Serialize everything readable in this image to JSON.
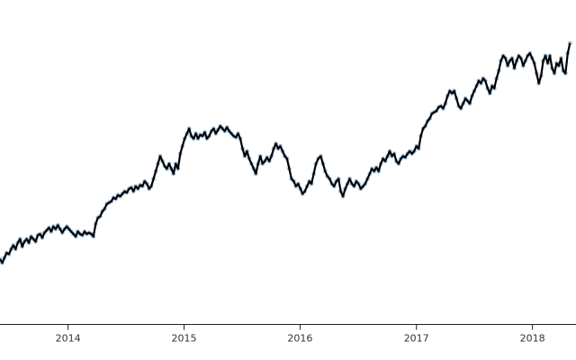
{
  "chart_data": {
    "type": "line",
    "title": "",
    "xlabel": "",
    "ylabel": "",
    "x_ticks": [
      "2014",
      "2015",
      "2016",
      "2017",
      "2018"
    ],
    "xlim": [
      "2013-06-01",
      "2018-05-01"
    ],
    "ylim": [
      0,
      100
    ],
    "grid": false,
    "legend": "none",
    "series": [
      {
        "line_color": "#000000",
        "marker_color": "#9dbbd6",
        "points": [
          [
            "2013-06-01",
            14
          ],
          [
            "2013-06-08",
            12.5
          ],
          [
            "2013-06-15",
            14.5
          ],
          [
            "2013-06-22",
            16.5
          ],
          [
            "2013-06-29",
            16
          ],
          [
            "2013-07-06",
            18
          ],
          [
            "2013-07-13",
            19.5
          ],
          [
            "2013-07-20",
            18
          ],
          [
            "2013-07-27",
            20.5
          ],
          [
            "2013-08-03",
            22
          ],
          [
            "2013-08-10",
            19
          ],
          [
            "2013-08-17",
            21
          ],
          [
            "2013-08-24",
            22
          ],
          [
            "2013-08-31",
            20.5
          ],
          [
            "2013-09-07",
            23
          ],
          [
            "2013-09-14",
            22
          ],
          [
            "2013-09-21",
            21
          ],
          [
            "2013-09-28",
            23.5
          ],
          [
            "2013-10-05",
            24
          ],
          [
            "2013-10-12",
            22.5
          ],
          [
            "2013-10-19",
            24.5
          ],
          [
            "2013-10-26",
            25.5
          ],
          [
            "2013-11-02",
            26.5
          ],
          [
            "2013-11-09",
            25
          ],
          [
            "2013-11-16",
            27
          ],
          [
            "2013-11-23",
            26
          ],
          [
            "2013-11-30",
            27.5
          ],
          [
            "2013-12-07",
            26
          ],
          [
            "2013-12-14",
            24.5
          ],
          [
            "2013-12-21",
            26
          ],
          [
            "2013-12-28",
            27
          ],
          [
            "2014-01-04",
            26
          ],
          [
            "2014-01-11",
            25
          ],
          [
            "2014-01-18",
            24
          ],
          [
            "2014-01-25",
            23
          ],
          [
            "2014-02-01",
            25
          ],
          [
            "2014-02-08",
            24
          ],
          [
            "2014-02-15",
            23.5
          ],
          [
            "2014-02-22",
            25
          ],
          [
            "2014-03-01",
            24
          ],
          [
            "2014-03-08",
            24.5
          ],
          [
            "2014-03-15",
            24
          ],
          [
            "2014-03-22",
            23
          ],
          [
            "2014-03-29",
            28
          ],
          [
            "2014-04-05",
            30.5
          ],
          [
            "2014-04-12",
            31
          ],
          [
            "2014-04-19",
            33
          ],
          [
            "2014-04-26",
            34
          ],
          [
            "2014-05-03",
            36
          ],
          [
            "2014-05-10",
            36.5
          ],
          [
            "2014-05-17",
            37
          ],
          [
            "2014-05-24",
            38.5
          ],
          [
            "2014-05-31",
            38
          ],
          [
            "2014-06-07",
            39.5
          ],
          [
            "2014-06-14",
            39
          ],
          [
            "2014-06-21",
            40
          ],
          [
            "2014-06-28",
            41
          ],
          [
            "2014-07-05",
            40.5
          ],
          [
            "2014-07-12",
            42
          ],
          [
            "2014-07-19",
            42.5
          ],
          [
            "2014-07-26",
            41
          ],
          [
            "2014-08-02",
            43
          ],
          [
            "2014-08-09",
            42
          ],
          [
            "2014-08-16",
            43.5
          ],
          [
            "2014-08-23",
            43
          ],
          [
            "2014-08-30",
            45
          ],
          [
            "2014-09-06",
            44
          ],
          [
            "2014-09-13",
            42
          ],
          [
            "2014-09-20",
            43
          ],
          [
            "2014-09-27",
            46
          ],
          [
            "2014-10-04",
            49
          ],
          [
            "2014-10-11",
            52
          ],
          [
            "2014-10-18",
            55
          ],
          [
            "2014-10-25",
            53
          ],
          [
            "2014-11-01",
            51
          ],
          [
            "2014-11-08",
            50
          ],
          [
            "2014-11-15",
            52
          ],
          [
            "2014-11-22",
            50
          ],
          [
            "2014-11-29",
            48
          ],
          [
            "2014-12-06",
            52
          ],
          [
            "2014-12-13",
            50
          ],
          [
            "2014-12-20",
            56
          ],
          [
            "2014-12-27",
            59
          ],
          [
            "2015-01-03",
            62
          ],
          [
            "2015-01-10",
            64
          ],
          [
            "2015-01-17",
            66
          ],
          [
            "2015-01-24",
            63
          ],
          [
            "2015-01-31",
            62
          ],
          [
            "2015-02-07",
            64
          ],
          [
            "2015-02-14",
            62
          ],
          [
            "2015-02-21",
            63.5
          ],
          [
            "2015-02-28",
            63
          ],
          [
            "2015-03-07",
            64.5
          ],
          [
            "2015-03-14",
            62
          ],
          [
            "2015-03-21",
            63
          ],
          [
            "2015-03-28",
            65
          ],
          [
            "2015-04-04",
            66
          ],
          [
            "2015-04-11",
            64
          ],
          [
            "2015-04-18",
            65.5
          ],
          [
            "2015-04-25",
            67
          ],
          [
            "2015-05-02",
            66
          ],
          [
            "2015-05-09",
            65
          ],
          [
            "2015-05-16",
            66.5
          ],
          [
            "2015-05-23",
            65
          ],
          [
            "2015-05-30",
            64
          ],
          [
            "2015-06-06",
            63
          ],
          [
            "2015-06-13",
            62.5
          ],
          [
            "2015-06-20",
            64
          ],
          [
            "2015-06-27",
            62
          ],
          [
            "2015-07-04",
            58
          ],
          [
            "2015-07-11",
            55
          ],
          [
            "2015-07-18",
            57
          ],
          [
            "2015-07-25",
            54
          ],
          [
            "2015-08-01",
            52
          ],
          [
            "2015-08-08",
            50
          ],
          [
            "2015-08-15",
            48
          ],
          [
            "2015-08-22",
            52
          ],
          [
            "2015-08-29",
            55
          ],
          [
            "2015-09-05",
            52
          ],
          [
            "2015-09-12",
            53
          ],
          [
            "2015-09-19",
            54.5
          ],
          [
            "2015-09-26",
            53
          ],
          [
            "2015-10-03",
            55
          ],
          [
            "2015-10-10",
            58
          ],
          [
            "2015-10-17",
            60
          ],
          [
            "2015-10-24",
            58
          ],
          [
            "2015-10-31",
            59
          ],
          [
            "2015-11-07",
            57
          ],
          [
            "2015-11-14",
            55
          ],
          [
            "2015-11-21",
            54
          ],
          [
            "2015-11-28",
            50
          ],
          [
            "2015-12-05",
            46
          ],
          [
            "2015-12-12",
            45
          ],
          [
            "2015-12-19",
            43
          ],
          [
            "2015-12-26",
            44
          ],
          [
            "2016-01-02",
            42
          ],
          [
            "2016-01-09",
            40
          ],
          [
            "2016-01-16",
            41
          ],
          [
            "2016-01-23",
            43
          ],
          [
            "2016-01-30",
            45
          ],
          [
            "2016-02-06",
            44
          ],
          [
            "2016-02-13",
            48
          ],
          [
            "2016-02-20",
            52
          ],
          [
            "2016-02-27",
            54
          ],
          [
            "2016-03-06",
            55
          ],
          [
            "2016-03-13",
            52
          ],
          [
            "2016-03-20",
            49
          ],
          [
            "2016-03-27",
            47
          ],
          [
            "2016-04-03",
            46
          ],
          [
            "2016-04-10",
            44
          ],
          [
            "2016-04-17",
            43
          ],
          [
            "2016-04-24",
            45
          ],
          [
            "2016-05-01",
            46
          ],
          [
            "2016-05-08",
            41
          ],
          [
            "2016-05-15",
            39
          ],
          [
            "2016-05-22",
            42
          ],
          [
            "2016-05-29",
            44
          ],
          [
            "2016-06-05",
            46
          ],
          [
            "2016-06-12",
            44
          ],
          [
            "2016-06-19",
            43
          ],
          [
            "2016-06-26",
            45
          ],
          [
            "2016-07-03",
            44
          ],
          [
            "2016-07-10",
            42
          ],
          [
            "2016-07-17",
            43
          ],
          [
            "2016-07-24",
            44
          ],
          [
            "2016-07-31",
            46
          ],
          [
            "2016-08-07",
            48
          ],
          [
            "2016-08-14",
            50
          ],
          [
            "2016-08-21",
            49
          ],
          [
            "2016-08-28",
            50.5
          ],
          [
            "2016-09-04",
            49
          ],
          [
            "2016-09-11",
            52
          ],
          [
            "2016-09-18",
            54
          ],
          [
            "2016-09-25",
            53
          ],
          [
            "2016-10-02",
            55
          ],
          [
            "2016-10-09",
            57
          ],
          [
            "2016-10-16",
            55
          ],
          [
            "2016-10-23",
            56
          ],
          [
            "2016-10-30",
            53
          ],
          [
            "2016-11-06",
            52
          ],
          [
            "2016-11-13",
            54
          ],
          [
            "2016-11-20",
            55
          ],
          [
            "2016-11-27",
            54.5
          ],
          [
            "2016-12-04",
            56
          ],
          [
            "2016-12-11",
            57
          ],
          [
            "2016-12-18",
            56
          ],
          [
            "2016-12-25",
            57
          ],
          [
            "2017-01-01",
            59
          ],
          [
            "2017-01-08",
            58
          ],
          [
            "2017-01-15",
            63
          ],
          [
            "2017-01-22",
            66
          ],
          [
            "2017-01-29",
            67
          ],
          [
            "2017-02-05",
            69
          ],
          [
            "2017-02-12",
            70
          ],
          [
            "2017-02-19",
            72
          ],
          [
            "2017-02-26",
            72.5
          ],
          [
            "2017-03-05",
            73
          ],
          [
            "2017-03-12",
            74.5
          ],
          [
            "2017-03-19",
            75
          ],
          [
            "2017-03-26",
            74
          ],
          [
            "2017-04-02",
            76
          ],
          [
            "2017-04-09",
            79
          ],
          [
            "2017-04-16",
            81
          ],
          [
            "2017-04-23",
            80
          ],
          [
            "2017-04-30",
            81
          ],
          [
            "2017-05-07",
            78
          ],
          [
            "2017-05-14",
            75
          ],
          [
            "2017-05-21",
            74
          ],
          [
            "2017-05-28",
            76
          ],
          [
            "2017-06-04",
            78
          ],
          [
            "2017-06-11",
            77
          ],
          [
            "2017-06-18",
            76
          ],
          [
            "2017-06-25",
            79
          ],
          [
            "2017-07-02",
            81
          ],
          [
            "2017-07-09",
            83
          ],
          [
            "2017-07-16",
            85
          ],
          [
            "2017-07-23",
            84
          ],
          [
            "2017-07-30",
            86
          ],
          [
            "2017-08-06",
            85
          ],
          [
            "2017-08-13",
            82
          ],
          [
            "2017-08-20",
            80
          ],
          [
            "2017-08-27",
            83
          ],
          [
            "2017-09-03",
            82
          ],
          [
            "2017-09-10",
            86
          ],
          [
            "2017-09-17",
            89
          ],
          [
            "2017-09-24",
            93
          ],
          [
            "2017-10-01",
            95
          ],
          [
            "2017-10-08",
            94
          ],
          [
            "2017-10-15",
            91
          ],
          [
            "2017-10-22",
            93
          ],
          [
            "2017-10-29",
            94
          ],
          [
            "2017-11-05",
            90
          ],
          [
            "2017-11-12",
            93
          ],
          [
            "2017-11-19",
            95
          ],
          [
            "2017-11-26",
            94
          ],
          [
            "2017-12-03",
            91
          ],
          [
            "2017-12-10",
            93
          ],
          [
            "2017-12-17",
            95
          ],
          [
            "2017-12-24",
            96
          ],
          [
            "2017-12-31",
            94
          ],
          [
            "2018-01-07",
            92
          ],
          [
            "2018-01-14",
            88
          ],
          [
            "2018-01-21",
            84
          ],
          [
            "2018-01-28",
            87
          ],
          [
            "2018-02-04",
            93
          ],
          [
            "2018-02-11",
            95
          ],
          [
            "2018-02-18",
            92
          ],
          [
            "2018-02-25",
            95
          ],
          [
            "2018-03-04",
            90
          ],
          [
            "2018-03-11",
            88
          ],
          [
            "2018-03-18",
            92
          ],
          [
            "2018-03-25",
            91
          ],
          [
            "2018-04-01",
            94
          ],
          [
            "2018-04-08",
            89
          ],
          [
            "2018-04-15",
            88
          ],
          [
            "2018-04-22",
            96
          ],
          [
            "2018-04-29",
            100
          ]
        ]
      }
    ]
  }
}
